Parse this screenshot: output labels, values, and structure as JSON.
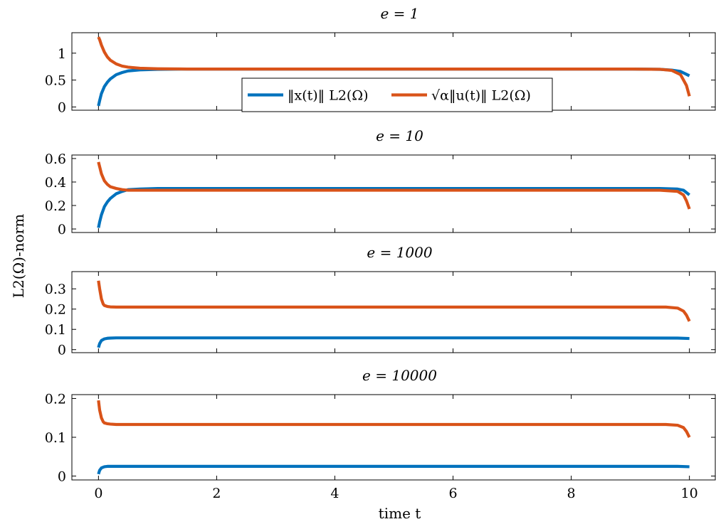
{
  "chart_data": {
    "type": "line",
    "xlabel": "time t",
    "ylabel": "L2(Ω)-norm",
    "xlim": [
      -0.45,
      10.45
    ],
    "xticks": [
      0,
      2,
      4,
      6,
      8,
      10
    ],
    "legend": {
      "placement": "inside first panel, lower center",
      "entries": [
        {
          "label": "‖x(t)‖ L2(Ω)",
          "color": "#0072BD"
        },
        {
          "label": "√α‖u(t)‖ L2(Ω)",
          "color": "#D95319"
        }
      ]
    },
    "panels": [
      {
        "title": "e = 1",
        "ylim": [
          -0.06,
          1.38
        ],
        "yticks": [
          "0",
          "0.5",
          "1"
        ],
        "series": [
          {
            "color": "#0072BD",
            "x": [
              0,
              0.02,
              0.05,
              0.1,
              0.15,
              0.2,
              0.3,
              0.4,
              0.5,
              0.7,
              1,
              1.5,
              2,
              4,
              6,
              8,
              9,
              9.5,
              9.7,
              9.85,
              10
            ],
            "y": [
              0.02,
              0.12,
              0.25,
              0.38,
              0.46,
              0.52,
              0.6,
              0.64,
              0.67,
              0.69,
              0.7,
              0.705,
              0.705,
              0.705,
              0.705,
              0.705,
              0.705,
              0.7,
              0.685,
              0.66,
              0.58
            ]
          },
          {
            "color": "#D95319",
            "x": [
              0,
              0.02,
              0.05,
              0.1,
              0.15,
              0.2,
              0.3,
              0.4,
              0.5,
              0.7,
              1,
              1.5,
              2,
              4,
              6,
              8,
              9,
              9.5,
              9.7,
              9.85,
              9.95,
              10
            ],
            "y": [
              1.3,
              1.25,
              1.15,
              1.02,
              0.93,
              0.87,
              0.8,
              0.76,
              0.74,
              0.72,
              0.71,
              0.705,
              0.705,
              0.705,
              0.705,
              0.705,
              0.705,
              0.7,
              0.68,
              0.6,
              0.4,
              0.2
            ]
          }
        ]
      },
      {
        "title": "e = 10",
        "ylim": [
          -0.03,
          0.63
        ],
        "yticks": [
          "0",
          "0.2",
          "0.4",
          "0.6"
        ],
        "series": [
          {
            "color": "#0072BD",
            "x": [
              0,
              0.02,
              0.05,
              0.1,
              0.15,
              0.2,
              0.3,
              0.4,
              0.5,
              0.7,
              1,
              2,
              4,
              6,
              8,
              9.5,
              9.8,
              9.9,
              10
            ],
            "y": [
              0.01,
              0.06,
              0.12,
              0.19,
              0.23,
              0.26,
              0.3,
              0.32,
              0.335,
              0.34,
              0.345,
              0.345,
              0.345,
              0.345,
              0.345,
              0.345,
              0.34,
              0.33,
              0.29
            ]
          },
          {
            "color": "#D95319",
            "x": [
              0,
              0.02,
              0.05,
              0.1,
              0.15,
              0.2,
              0.3,
              0.4,
              0.5,
              0.7,
              1,
              2,
              4,
              6,
              8,
              9.5,
              9.8,
              9.9,
              9.95,
              10
            ],
            "y": [
              0.57,
              0.53,
              0.47,
              0.41,
              0.38,
              0.36,
              0.345,
              0.335,
              0.33,
              0.33,
              0.33,
              0.33,
              0.33,
              0.33,
              0.33,
              0.33,
              0.32,
              0.29,
              0.24,
              0.17
            ]
          }
        ]
      },
      {
        "title": "e = 1000",
        "ylim": [
          -0.015,
          0.385
        ],
        "yticks": [
          "0",
          "0.1",
          "0.2",
          "0.3"
        ],
        "series": [
          {
            "color": "#0072BD",
            "x": [
              0,
              0.02,
              0.05,
              0.1,
              0.15,
              0.2,
              0.3,
              0.5,
              1,
              4,
              8,
              9.8,
              10
            ],
            "y": [
              0.01,
              0.03,
              0.045,
              0.053,
              0.056,
              0.057,
              0.058,
              0.058,
              0.058,
              0.058,
              0.058,
              0.057,
              0.055
            ]
          },
          {
            "color": "#D95319",
            "x": [
              0,
              0.02,
              0.05,
              0.08,
              0.1,
              0.15,
              0.2,
              0.3,
              0.5,
              1,
              4,
              8,
              9.6,
              9.8,
              9.9,
              9.95,
              10
            ],
            "y": [
              0.34,
              0.3,
              0.25,
              0.225,
              0.218,
              0.213,
              0.211,
              0.21,
              0.21,
              0.21,
              0.21,
              0.21,
              0.21,
              0.205,
              0.19,
              0.17,
              0.14
            ]
          }
        ]
      },
      {
        "title": "e = 10000",
        "ylim": [
          -0.01,
          0.21
        ],
        "yticks": [
          "0",
          "0.1",
          "0.2"
        ],
        "series": [
          {
            "color": "#0072BD",
            "x": [
              0,
              0.02,
              0.05,
              0.1,
              0.15,
              0.2,
              0.5,
              1,
              4,
              8,
              9.8,
              10
            ],
            "y": [
              0.005,
              0.015,
              0.021,
              0.024,
              0.025,
              0.025,
              0.025,
              0.025,
              0.025,
              0.025,
              0.025,
              0.024
            ]
          },
          {
            "color": "#D95319",
            "x": [
              0,
              0.02,
              0.05,
              0.08,
              0.1,
              0.15,
              0.2,
              0.3,
              0.5,
              1,
              4,
              8,
              9.6,
              9.8,
              9.9,
              9.95,
              10
            ],
            "y": [
              0.195,
              0.17,
              0.15,
              0.14,
              0.137,
              0.135,
              0.134,
              0.133,
              0.133,
              0.133,
              0.133,
              0.133,
              0.133,
              0.131,
              0.125,
              0.115,
              0.1
            ]
          }
        ]
      }
    ]
  }
}
